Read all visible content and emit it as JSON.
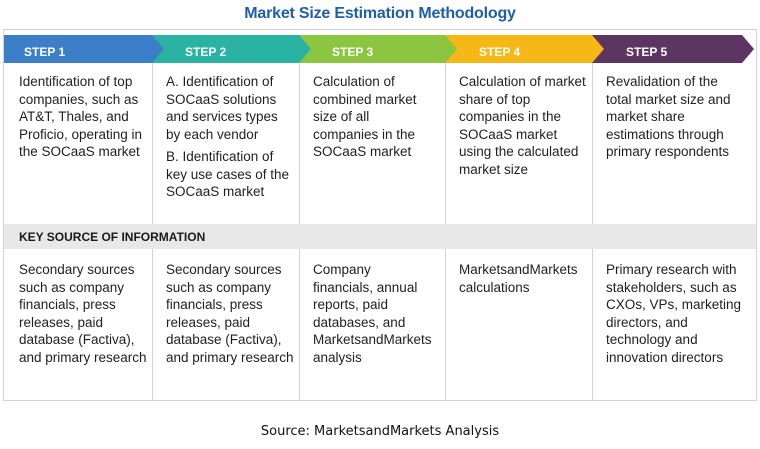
{
  "title": "Market Size Estimation Methodology",
  "colors": {
    "step1": "#3d7ec9",
    "step2": "#2ab3a3",
    "step3": "#8cc540",
    "step4": "#f6b817",
    "step5": "#5d3563",
    "title": "#1f5ea8"
  },
  "steps": [
    {
      "label": "STEP 1",
      "description": [
        "Identification of top companies, such as AT&T, Thales, and Proficio, operating in the SOCaaS market"
      ],
      "source": "Secondary sources such as company financials, press releases, paid database (Factiva), and primary research"
    },
    {
      "label": "STEP 2",
      "description": [
        "A. Identification of SOCaaS solutions and services types by each vendor",
        "B. Identification of key use cases of the SOCaaS market"
      ],
      "source": "Secondary sources such as company financials, press releases, paid database (Factiva), and primary research"
    },
    {
      "label": "STEP 3",
      "description": [
        "Calculation of combined market size of all companies in the SOCaaS market"
      ],
      "source": "Company financials, annual reports, paid databases, and MarketsandMarkets analysis"
    },
    {
      "label": "STEP 4",
      "description": [
        "Calculation of market share of top companies in the SOCaaS market using the calculated market size"
      ],
      "source": "MarketsandMarkets calculations"
    },
    {
      "label": "STEP 5",
      "description": [
        "Revalidation of the total market size and market share estimations through primary respondents"
      ],
      "source": "Primary research with stakeholders, such as CXOs, VPs, marketing directors, and technology and innovation directors"
    }
  ],
  "key_source_label": "KEY SOURCE OF INFORMATION",
  "source_note": "Source: MarketsandMarkets Analysis"
}
